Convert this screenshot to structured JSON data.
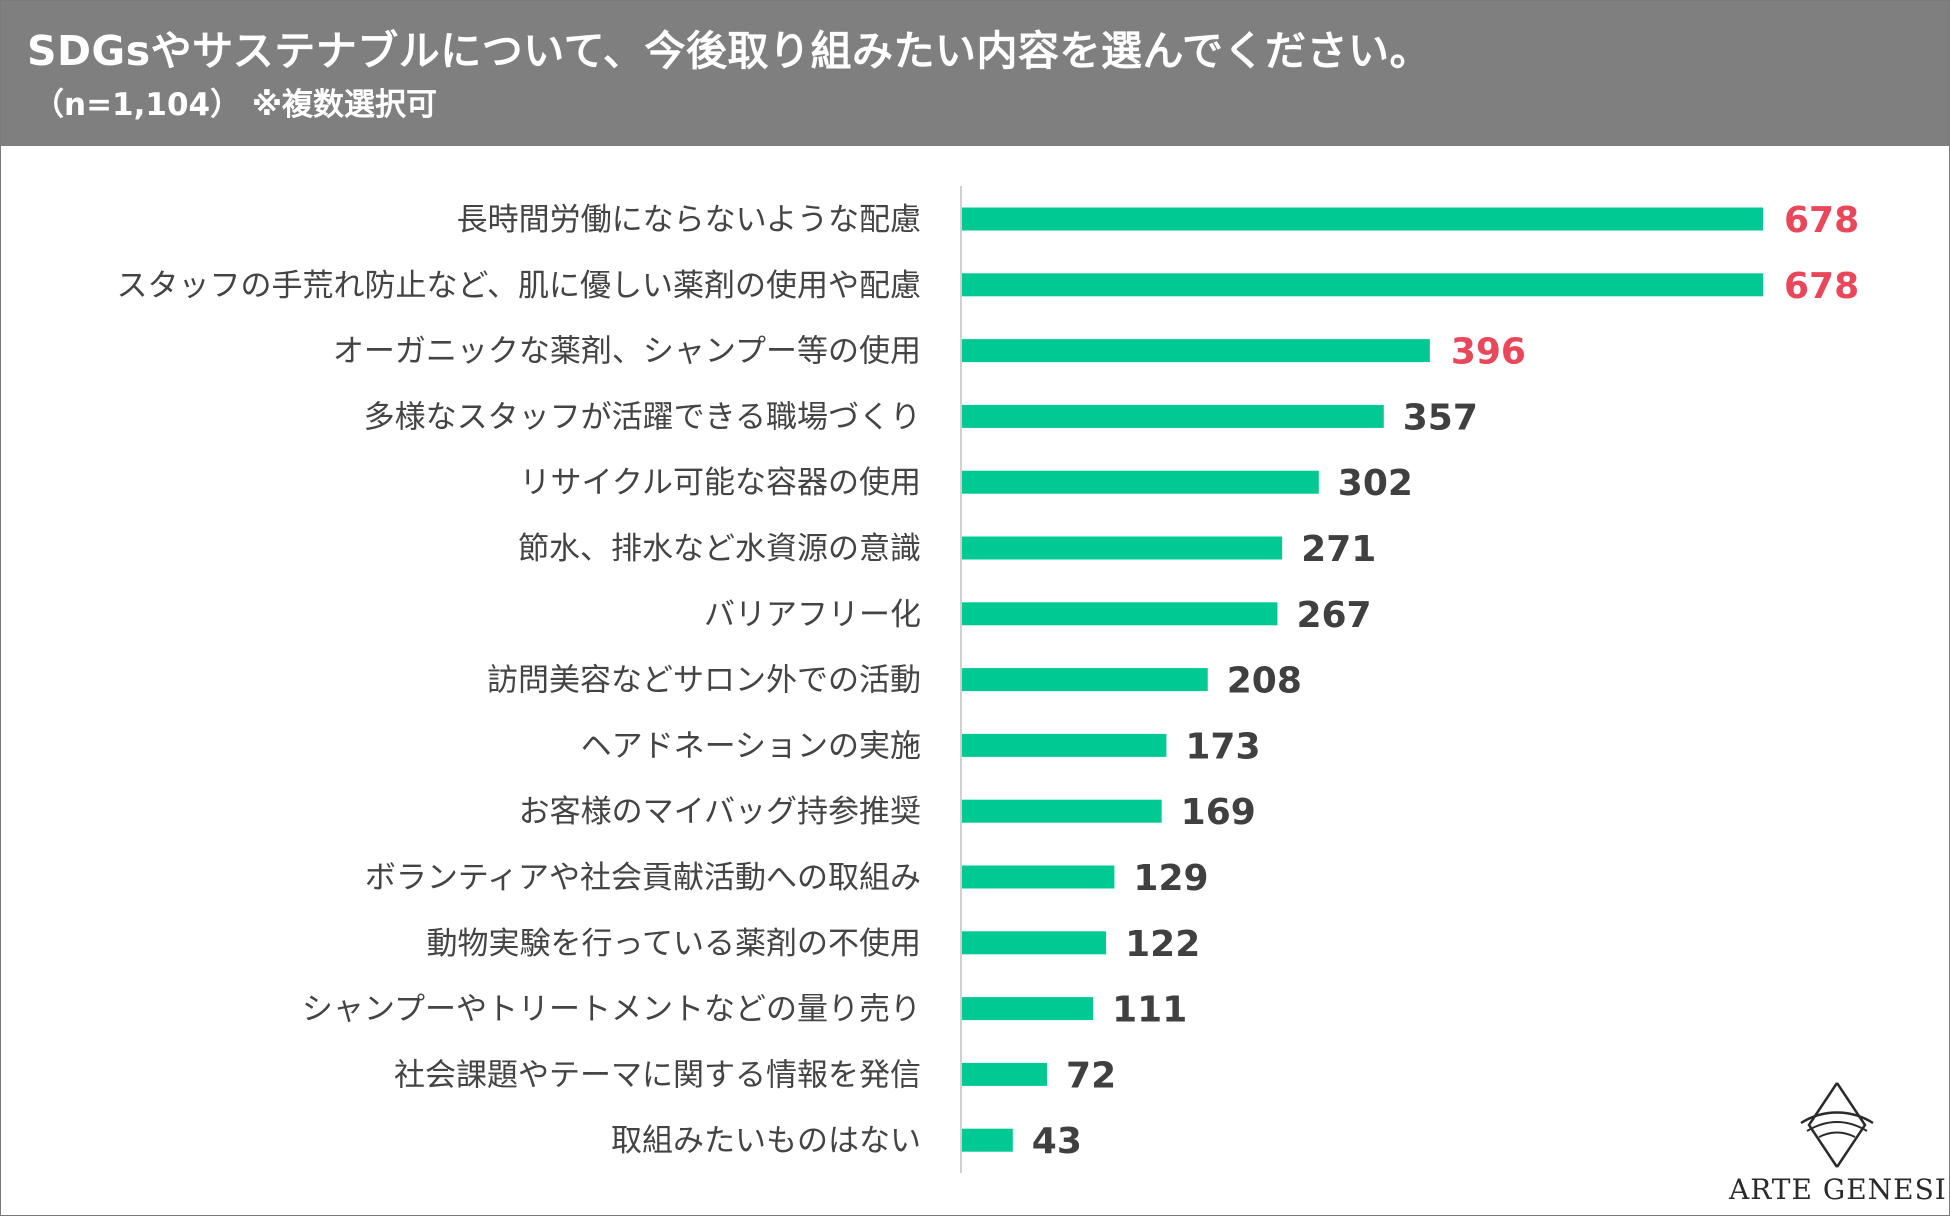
{
  "header": {
    "title": "SDGsやサステナブルについて、今後取り組みたい内容を選んでください。",
    "subtitle": "（n=1,104） ※複数選択可"
  },
  "colors": {
    "bar": "#00c994",
    "highlight_value": "#e8485a",
    "normal_value": "#404040",
    "header_bg": "#7f7f7f"
  },
  "chart_data": {
    "type": "bar",
    "orientation": "horizontal",
    "title": "SDGsやサステナブルについて、今後取り組みたい内容を選んでください。",
    "subtitle": "（n=1,104） ※複数選択可",
    "xlim": [
      0,
      678
    ],
    "highlight_top": 3,
    "categories": [
      "長時間労働にならないような配慮",
      "スタッフの手荒れ防止など、肌に優しい薬剤の使用や配慮",
      "オーガニックな薬剤、シャンプー等の使用",
      "多様なスタッフが活躍できる職場づくり",
      "リサイクル可能な容器の使用",
      "節水、排水など水資源の意識",
      "バリアフリー化",
      "訪問美容などサロン外での活動",
      "ヘアドネーションの実施",
      "お客様のマイバッグ持参推奨",
      "ボランティアや社会貢献活動への取組み",
      "動物実験を行っている薬剤の不使用",
      "シャンプーやトリートメントなどの量り売り",
      "社会課題やテーマに関する情報を発信",
      "取組みたいものはない"
    ],
    "values": [
      678,
      678,
      396,
      357,
      302,
      271,
      267,
      208,
      173,
      169,
      129,
      122,
      111,
      72,
      43
    ]
  },
  "logo": {
    "text": "ARTE GENESIS",
    "icon": "arte-genesis-logo-icon"
  }
}
